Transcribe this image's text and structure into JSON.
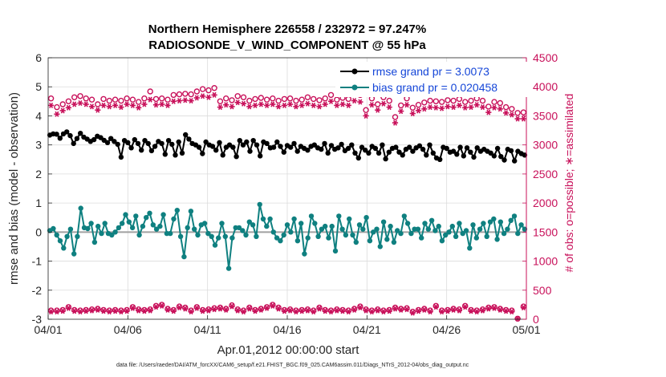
{
  "chart_data": {
    "type": "line",
    "title_line1": "Northern Hemisphere 226558 / 232972 = 97.247%",
    "title_line2": "RADIOSONDE_V_WIND_COMPONENT @ 55 hPa",
    "xlabel": "Apr.01,2012 00:00:00 start",
    "ylabel_left": "rmse and bias (model - observation)",
    "ylabel_right": "# of obs: o=possible; ∗=assimilated",
    "footnote": "data file: /Users/raeder/DAI/ATM_forcXX/CAM6_setup/f.e21.FHIST_BGC.f09_025.CAM6assim.011/Diags_NTrS_2012-04/obs_diag_output.nc",
    "x_range_days": [
      0,
      30
    ],
    "x_tick_days": [
      0,
      5,
      10,
      15,
      20,
      25,
      30
    ],
    "x_tick_labels": [
      "04/01",
      "04/06",
      "04/11",
      "04/16",
      "04/21",
      "04/26",
      "05/01"
    ],
    "ylim_left": [
      -3,
      6
    ],
    "y_ticks_left": [
      "-3",
      "-2",
      "-1",
      "0",
      "1",
      "2",
      "3",
      "4",
      "5",
      "6"
    ],
    "ylim_right": [
      0,
      4500
    ],
    "y_ticks_right": [
      "0",
      "500",
      "1000",
      "1500",
      "2000",
      "2500",
      "3000",
      "3500",
      "4000",
      "4500"
    ],
    "grid": true,
    "legend": {
      "location": "top-right",
      "entries": [
        "rmse grand pr = 3.0073",
        "bias grand pr = 0.020458"
      ]
    },
    "colors": {
      "rmse": "#000000",
      "bias": "#0f8080",
      "counts": "#c8105a",
      "zero_line": "#a0a0a0",
      "legend_text": "#1546d8"
    },
    "series": [
      {
        "name": "rmse",
        "values": [
          3.34,
          3.38,
          3.37,
          3.23,
          3.38,
          3.45,
          3.32,
          3.05,
          3.22,
          3.4,
          3.27,
          3.2,
          3.12,
          3.18,
          3.3,
          3.25,
          3.16,
          3.08,
          3.22,
          3.12,
          3.02,
          2.58,
          3.15,
          3.08,
          2.9,
          3.18,
          3.05,
          2.82,
          3.15,
          3.05,
          2.8,
          2.95,
          3.12,
          3.05,
          2.68,
          3.15,
          3.02,
          2.65,
          3.1,
          2.72,
          3.35,
          3.2,
          3.05,
          3.0,
          2.92,
          2.7,
          3.1,
          3.0,
          2.95,
          2.82,
          3.08,
          2.65,
          2.92,
          3.0,
          2.92,
          2.6,
          3.15,
          3.0,
          3.1,
          2.78,
          3.15,
          3.0,
          2.62,
          3.1,
          3.05,
          2.9,
          2.92,
          3.1,
          2.95,
          2.75,
          2.98,
          2.92,
          3.05,
          2.78,
          2.95,
          2.88,
          2.82,
          2.95,
          3.0,
          2.9,
          2.85,
          3.05,
          2.72,
          2.98,
          2.85,
          2.9,
          3.02,
          2.8,
          2.88,
          3.0,
          2.72,
          2.55,
          2.92,
          2.82,
          2.72,
          2.95,
          2.88,
          2.72,
          3.0,
          2.52,
          2.75,
          2.88,
          2.92,
          2.75,
          2.65,
          2.85,
          2.92,
          2.78,
          2.9,
          2.97,
          2.85,
          2.65,
          3.0,
          2.72,
          2.55,
          2.5,
          2.92,
          2.88,
          2.75,
          2.78,
          2.68,
          2.92,
          2.62,
          2.9,
          2.75,
          2.58,
          2.9,
          2.78,
          2.85,
          2.78,
          2.72,
          2.62,
          2.88,
          2.6,
          2.48,
          2.85,
          2.8,
          2.45,
          2.78,
          2.7,
          2.65
        ]
      },
      {
        "name": "bias",
        "values": [
          0.05,
          0.12,
          -0.1,
          -0.3,
          -0.55,
          -0.15,
          0.1,
          -0.75,
          -0.15,
          0.82,
          0.15,
          0.12,
          0.3,
          -0.35,
          0.2,
          -0.05,
          0.3,
          -0.05,
          -0.1,
          0.0,
          0.15,
          0.3,
          0.6,
          0.35,
          0.15,
          0.55,
          -0.1,
          0.2,
          0.5,
          0.65,
          0.25,
          0.1,
          0.2,
          0.6,
          -0.05,
          -0.05,
          0.45,
          0.75,
          -0.15,
          -0.85,
          0.15,
          0.72,
          0.1,
          -0.1,
          0.25,
          0.3,
          -0.05,
          -0.15,
          -0.45,
          -0.2,
          0.3,
          -0.15,
          -1.25,
          -0.2,
          0.15,
          0.15,
          0.05,
          -0.1,
          0.35,
          0.25,
          -0.15,
          0.95,
          0.45,
          0.2,
          0.45,
          0.0,
          -0.2,
          -0.3,
          -0.1,
          0.25,
          0.0,
          0.45,
          -0.3,
          0.3,
          -0.75,
          -0.2,
          0.55,
          0.3,
          -0.15,
          0.1,
          0.2,
          -0.2,
          0.2,
          -0.65,
          0.55,
          0.1,
          -0.1,
          0.45,
          -0.1,
          -0.35,
          0.25,
          0.1,
          0.5,
          -0.3,
          0.0,
          0.1,
          -0.5,
          0.35,
          -0.25,
          0.2,
          -0.35,
          0.05,
          -0.05,
          0.55,
          0.3,
          -0.05,
          0.1,
          0.1,
          -0.2,
          0.3,
          0.1,
          0.4,
          0.05,
          0.2,
          -0.3,
          -0.1,
          0.0,
          0.2,
          -0.15,
          0.3,
          -0.05,
          0.05,
          -0.55,
          0.25,
          -0.2,
          0.1,
          0.3,
          -0.15,
          0.35,
          0.45,
          -0.25,
          0.35,
          -0.05,
          0.1,
          0.4,
          0.55,
          -0.05,
          0.25,
          0.1
        ]
      },
      {
        "name": "obs_possible",
        "values": [
          3800,
          3650,
          3700,
          3750,
          3820,
          3840,
          3800,
          3780,
          3700,
          3790,
          3760,
          3780,
          3760,
          3800,
          3780,
          3740,
          3800,
          3920,
          3790,
          3800,
          3780,
          3860,
          3870,
          3880,
          3870,
          3920,
          3960,
          3940,
          3980,
          3750,
          3800,
          3770,
          3840,
          3820,
          3760,
          3790,
          3810,
          3780,
          3800,
          3760,
          3790,
          3800,
          3760,
          3780,
          3820,
          3790,
          3770,
          3800,
          3860,
          3780,
          3810,
          3790,
          3880,
          3860,
          3600,
          3800,
          3700,
          3820,
          3760,
          3480,
          3680,
          3800,
          3640,
          3690,
          3730,
          3760,
          3750,
          3740,
          3770,
          3760,
          3790,
          3740,
          3760,
          3800,
          3760,
          3660,
          3740,
          3720,
          3650,
          3620,
          3550,
          3560
        ]
      },
      {
        "name": "obs_assimilated",
        "values": [
          3680,
          3530,
          3590,
          3640,
          3700,
          3720,
          3700,
          3660,
          3600,
          3680,
          3660,
          3680,
          3650,
          3700,
          3680,
          3640,
          3700,
          3780,
          3690,
          3700,
          3680,
          3750,
          3760,
          3770,
          3760,
          3810,
          3840,
          3820,
          3860,
          3650,
          3690,
          3660,
          3730,
          3710,
          3660,
          3680,
          3700,
          3680,
          3700,
          3660,
          3680,
          3700,
          3660,
          3680,
          3710,
          3680,
          3660,
          3700,
          3750,
          3680,
          3700,
          3680,
          3760,
          3740,
          3500,
          3690,
          3600,
          3710,
          3650,
          3380,
          3580,
          3690,
          3540,
          3590,
          3620,
          3650,
          3640,
          3630,
          3660,
          3650,
          3680,
          3640,
          3650,
          3690,
          3650,
          3560,
          3640,
          3620,
          3550,
          3520,
          3450,
          3450
        ]
      },
      {
        "name": "obs_bottom_possible",
        "values": [
          150,
          150,
          160,
          210,
          160,
          150,
          160,
          170,
          180,
          160,
          150,
          160,
          150,
          160,
          210,
          170,
          160,
          170,
          230,
          250,
          180,
          160,
          220,
          200,
          150,
          210,
          160,
          170,
          190,
          200,
          180,
          240,
          170,
          150,
          200,
          160,
          180,
          210,
          250,
          200,
          160,
          170,
          150,
          160,
          170,
          150,
          200,
          160,
          150,
          170,
          160,
          150,
          180,
          220,
          170,
          150,
          170,
          150,
          160,
          200,
          180,
          190,
          130,
          160,
          180,
          150,
          230,
          150,
          160,
          180,
          170,
          230,
          160,
          150,
          170,
          200,
          210,
          180,
          160,
          150,
          10,
          220
        ]
      },
      {
        "name": "obs_bottom_assimilated",
        "values": [
          130,
          130,
          140,
          190,
          140,
          130,
          140,
          150,
          160,
          140,
          130,
          140,
          130,
          140,
          190,
          150,
          140,
          150,
          210,
          230,
          160,
          140,
          200,
          180,
          130,
          190,
          140,
          150,
          170,
          180,
          160,
          220,
          150,
          130,
          180,
          140,
          160,
          190,
          230,
          180,
          140,
          150,
          130,
          140,
          150,
          130,
          180,
          140,
          130,
          150,
          140,
          130,
          160,
          200,
          150,
          130,
          150,
          130,
          140,
          180,
          160,
          170,
          110,
          140,
          160,
          130,
          210,
          130,
          140,
          160,
          150,
          210,
          140,
          130,
          150,
          180,
          190,
          160,
          140,
          130,
          10,
          200
        ]
      }
    ]
  }
}
